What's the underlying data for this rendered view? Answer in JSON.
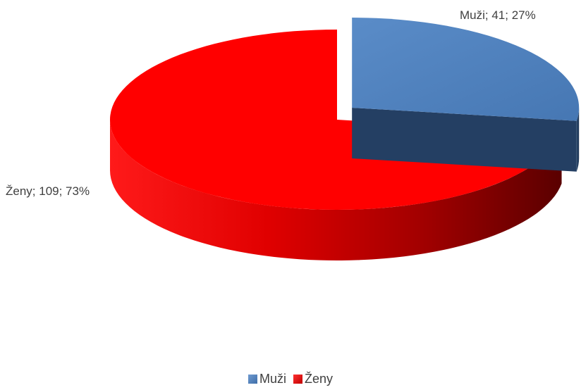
{
  "chart_data": {
    "type": "pie",
    "title": "",
    "categories": [
      "Muži",
      "Ženy"
    ],
    "values": [
      41,
      109
    ],
    "percentages": [
      27,
      73
    ],
    "colors": [
      "#4f81bd",
      "#ff0000"
    ],
    "data_labels": [
      "Muži; 41; 27%",
      "Ženy; 109; 73%"
    ],
    "exploded": [
      true,
      false
    ],
    "style": "3d",
    "legend_position": "bottom"
  },
  "legend": {
    "items": [
      {
        "label": "Muži",
        "color": "#4f81bd"
      },
      {
        "label": "Ženy",
        "color": "#ff0000"
      }
    ]
  }
}
